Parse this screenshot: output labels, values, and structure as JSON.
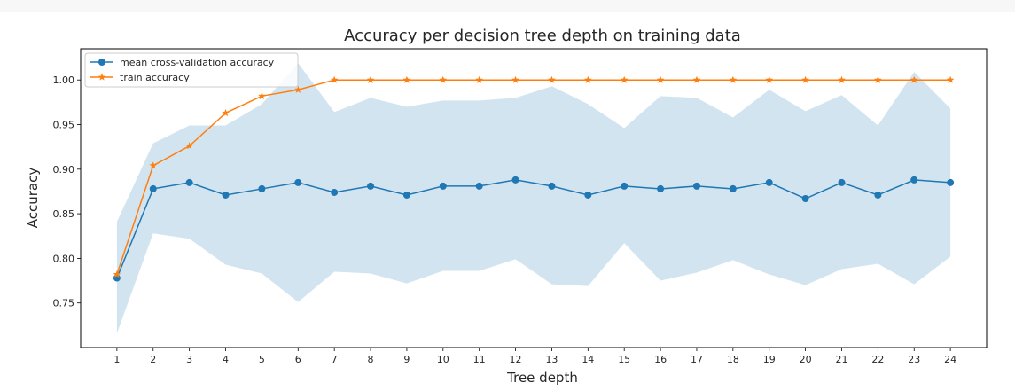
{
  "chart_data": {
    "type": "line",
    "title": "Accuracy per decision tree depth on training data",
    "xlabel": "Tree depth",
    "ylabel": "Accuracy",
    "x": [
      1,
      2,
      3,
      4,
      5,
      6,
      7,
      8,
      9,
      10,
      11,
      12,
      13,
      14,
      15,
      16,
      17,
      18,
      19,
      20,
      21,
      22,
      23,
      24
    ],
    "xticks": [
      "1",
      "2",
      "3",
      "4",
      "5",
      "6",
      "7",
      "8",
      "9",
      "10",
      "11",
      "12",
      "13",
      "14",
      "15",
      "16",
      "17",
      "18",
      "19",
      "20",
      "21",
      "22",
      "23",
      "24"
    ],
    "ylim": [
      0.7,
      1.035
    ],
    "yticks": [
      0.75,
      0.8,
      0.85,
      0.9,
      0.95,
      1.0
    ],
    "ytick_labels": [
      "0.75",
      "0.80",
      "0.85",
      "0.90",
      "0.95",
      "1.00"
    ],
    "legend_position": "top-left",
    "grid": false,
    "series": [
      {
        "name": "mean cross-validation accuracy",
        "color": "#1f77b4",
        "marker": "circle",
        "values": [
          0.778,
          0.878,
          0.885,
          0.871,
          0.878,
          0.885,
          0.874,
          0.881,
          0.871,
          0.881,
          0.881,
          0.888,
          0.881,
          0.871,
          0.881,
          0.878,
          0.881,
          0.878,
          0.885,
          0.867,
          0.885,
          0.871,
          0.888,
          0.885
        ],
        "band_upper": [
          0.841,
          0.929,
          0.949,
          0.949,
          0.973,
          1.019,
          0.964,
          0.98,
          0.97,
          0.977,
          0.977,
          0.98,
          0.993,
          0.973,
          0.946,
          0.982,
          0.98,
          0.958,
          0.989,
          0.965,
          0.983,
          0.949,
          1.009,
          0.968
        ],
        "band_lower": [
          0.716,
          0.828,
          0.822,
          0.793,
          0.783,
          0.751,
          0.785,
          0.783,
          0.772,
          0.786,
          0.786,
          0.799,
          0.771,
          0.769,
          0.817,
          0.775,
          0.784,
          0.798,
          0.782,
          0.77,
          0.788,
          0.794,
          0.771,
          0.802
        ]
      },
      {
        "name": "train accuracy",
        "color": "#ff7f0e",
        "marker": "star",
        "values": [
          0.782,
          0.904,
          0.926,
          0.963,
          0.982,
          0.989,
          1.0,
          1.0,
          1.0,
          1.0,
          1.0,
          1.0,
          1.0,
          1.0,
          1.0,
          1.0,
          1.0,
          1.0,
          1.0,
          1.0,
          1.0,
          1.0,
          1.0,
          1.0
        ]
      }
    ]
  }
}
